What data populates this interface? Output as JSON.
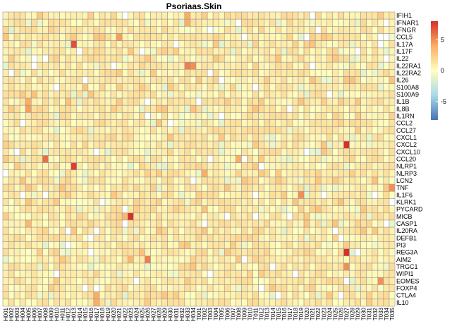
{
  "chart_data": {
    "type": "heatmap",
    "title": "Psoriaas.Skin",
    "rows": [
      "IFIH1",
      "IFNAR1",
      "IFNGR",
      "CCL5",
      "IL17A",
      "IL17F",
      "IL22",
      "IL22RA1",
      "IL22RA2",
      "IL26",
      "S100A8",
      "S100A9",
      "IL1B",
      "IL8B",
      "IL1RN",
      "CCL2",
      "CCL27",
      "CXCL1",
      "CXCL2",
      "CXCL10",
      "CCL20",
      "NLRP1",
      "NLRP3",
      "LCN2",
      "TNF",
      "IL1F6",
      "KLRK1",
      "PYCARD",
      "MICB",
      "CASP1",
      "IL20RA",
      "DEFB1",
      "PI3",
      "REG3A",
      "AIM2",
      "TRGC1",
      "WIPI1",
      "EOMES",
      "FOXP4",
      "CTLA4",
      "IL10"
    ],
    "columns": [
      "H001",
      "H002",
      "H003",
      "H004",
      "H005",
      "H006",
      "H007",
      "H008",
      "H009",
      "H010",
      "H011",
      "H012",
      "H013",
      "H014",
      "H015",
      "H016",
      "H017",
      "H018",
      "H019",
      "H020",
      "H021",
      "H022",
      "H023",
      "H024",
      "H025",
      "H026",
      "H027",
      "H028",
      "H029",
      "H030",
      "H031",
      "H032",
      "H033",
      "H034",
      "T001",
      "T002",
      "T003",
      "T004",
      "T005",
      "T006",
      "T007",
      "T008",
      "T009",
      "T010",
      "T011",
      "T012",
      "T013",
      "T014",
      "T015",
      "T016",
      "T017",
      "T018",
      "T019",
      "T020",
      "T021",
      "T022",
      "T023",
      "T024",
      "T025",
      "T026",
      "T027",
      "T028",
      "T029",
      "T030",
      "T031",
      "T032",
      "T033",
      "T034",
      "T035"
    ],
    "colorscale": {
      "min": -8,
      "max": 8,
      "ticks": [
        -5,
        0,
        5
      ],
      "low": "#4575b4",
      "mid": "#ffffbf",
      "high": "#d73027"
    },
    "notable": [
      {
        "row": "IL17A",
        "col": "H013",
        "value": 7
      },
      {
        "row": "CCL5",
        "col": "H021",
        "value": 4.5
      },
      {
        "row": "CCL20",
        "col": "H008",
        "value": 6
      },
      {
        "row": "NLRP1",
        "col": "H013",
        "value": 7.5
      },
      {
        "row": "CXCL2",
        "col": "T027",
        "value": 8
      },
      {
        "row": "REG3A",
        "col": "T027",
        "value": 8
      },
      {
        "row": "MICB",
        "col": "H023",
        "value": 8
      },
      {
        "row": "AIM2",
        "col": "H026",
        "value": 5.5
      },
      {
        "row": "TRGC1",
        "col": "T027",
        "value": 5
      },
      {
        "row": "IL22RA1",
        "col": "H033",
        "value": 5.5
      },
      {
        "row": "IL22RA1",
        "col": "H034",
        "value": 5
      },
      {
        "row": "TNF",
        "col": "T035",
        "value": 5
      },
      {
        "row": "IL1F6",
        "col": "T019",
        "value": 5
      },
      {
        "row": "IL8B",
        "col": "H005",
        "value": 4.5
      },
      {
        "row": "IL1B",
        "col": "H005",
        "value": 4
      },
      {
        "row": "EOMES",
        "col": "T033",
        "value": 5
      },
      {
        "row": "IFIH1",
        "col": "H033",
        "value": 4
      },
      {
        "row": "IFNAR1",
        "col": "H033",
        "value": 4
      },
      {
        "row": "CCL20",
        "col": "T008",
        "value": 4
      },
      {
        "row": "NLRP3",
        "col": "T002",
        "value": 4
      },
      {
        "row": "CTLA4",
        "col": "H017",
        "value": 4
      },
      {
        "row": "IL10",
        "col": "H017",
        "value": 4
      },
      {
        "row": "CASP1",
        "col": "H005",
        "value": 3.5
      },
      {
        "row": "MICB",
        "col": "H022",
        "value": 3.5
      },
      {
        "row": "AIM2",
        "col": "H023",
        "value": 3.5
      }
    ]
  }
}
